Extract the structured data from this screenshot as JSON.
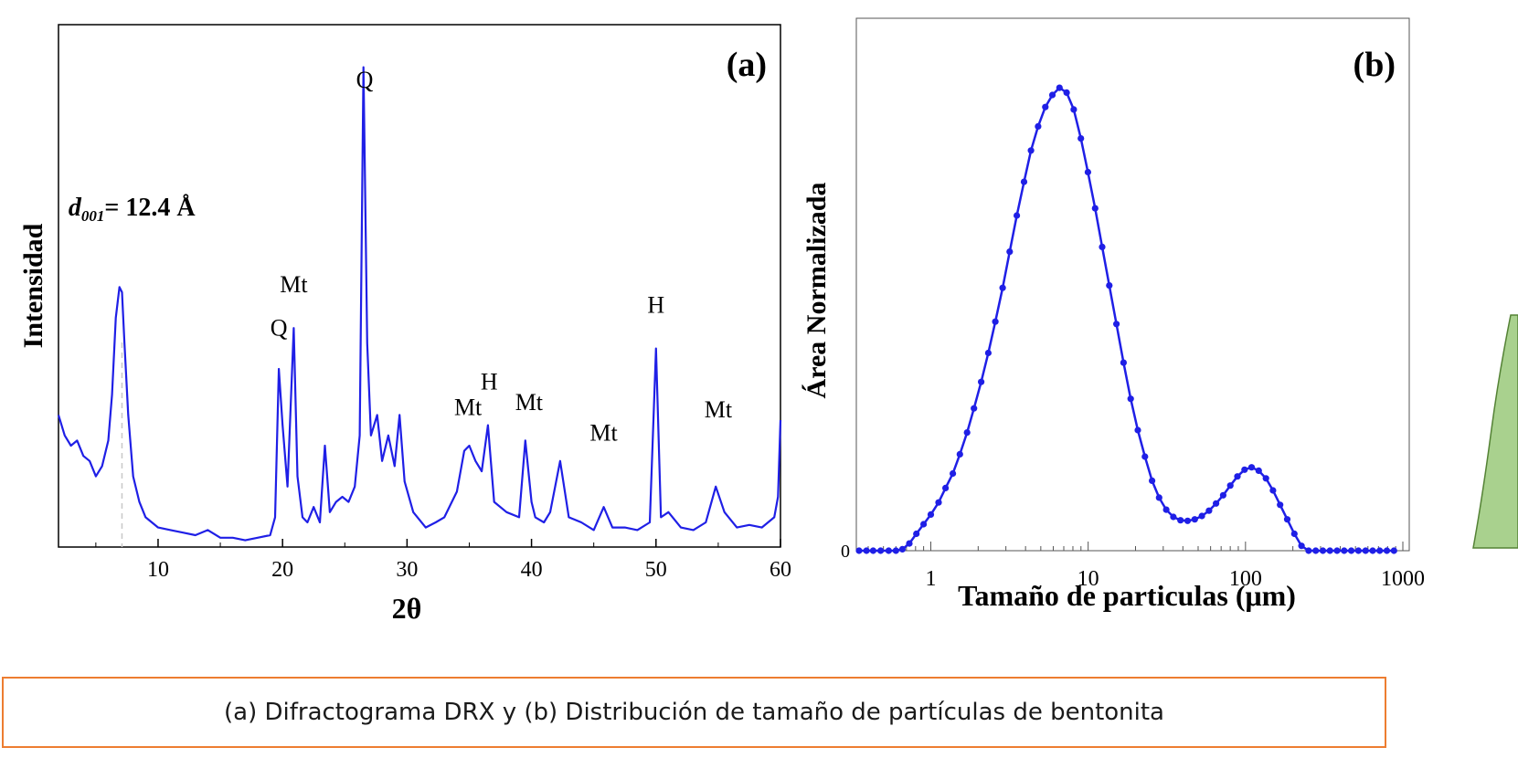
{
  "caption": "(a) Difractograma DRX y (b) Distribución de tamaño de partículas de bentonita",
  "colors": {
    "series": "#1f1fe6",
    "caption_border": "#ed7d31",
    "arrow_fill": "#a9d18e",
    "arrow_stroke": "#548235"
  },
  "chart_data": [
    {
      "type": "line",
      "panel_label": "(a)",
      "xlabel": "2θ",
      "ylabel": "Intensidad",
      "xlim": [
        2,
        60
      ],
      "ylim": [
        0,
        100
      ],
      "xticks": [
        10,
        20,
        30,
        40,
        50,
        60
      ],
      "x_tick_labels": [
        "10",
        "20",
        "30",
        "40",
        "50",
        "60"
      ],
      "y_ticks_shown": false,
      "annotations": [
        {
          "text": "Q",
          "x": 26.6,
          "y": 90
        },
        {
          "text": "Q",
          "x": 19.7,
          "y": 41.5
        },
        {
          "text": "Mt",
          "x": 20.9,
          "y": 50
        },
        {
          "text": "Mt",
          "x": 34.9,
          "y": 26
        },
        {
          "text": "H",
          "x": 36.6,
          "y": 31
        },
        {
          "text": "Mt",
          "x": 39.8,
          "y": 27
        },
        {
          "text": "Mt",
          "x": 45.8,
          "y": 21
        },
        {
          "text": "H",
          "x": 50,
          "y": 46
        },
        {
          "text": "Mt",
          "x": 55,
          "y": 25.5
        }
      ],
      "d_spacing_label": {
        "italic": "d",
        "subscript": "001",
        "rest": "= 12.4 Å",
        "x": 2.8,
        "y": 65
      },
      "guide_line_x": 7.1,
      "series": [
        {
          "name": "",
          "x": [
            2,
            2.5,
            3,
            3.5,
            4,
            4.5,
            5,
            5.5,
            6,
            6.3,
            6.6,
            6.9,
            7.1,
            7.3,
            7.6,
            8,
            8.5,
            9,
            10,
            11,
            12,
            13,
            14,
            15,
            16,
            17,
            18,
            19,
            19.4,
            19.7,
            20,
            20.4,
            20.9,
            21.2,
            21.6,
            22,
            22.5,
            23,
            23.4,
            23.8,
            24.3,
            24.8,
            25.3,
            25.8,
            26.2,
            26.5,
            26.8,
            27.1,
            27.6,
            28,
            28.5,
            29,
            29.4,
            29.8,
            30.5,
            31.5,
            32.3,
            33,
            34,
            34.6,
            35,
            35.5,
            36,
            36.5,
            37,
            38,
            39,
            39.5,
            40,
            40.3,
            41,
            41.5,
            42.3,
            43,
            44,
            45,
            45.8,
            46.5,
            47.5,
            48.5,
            49.5,
            50,
            50.4,
            51,
            52,
            53,
            54,
            54.8,
            55.5,
            56.5,
            57.5,
            58.5,
            59.5,
            59.8,
            60
          ],
          "y": [
            26,
            22,
            20,
            21,
            18,
            17,
            14,
            16,
            21,
            30,
            45,
            51,
            50,
            40,
            26,
            14,
            9,
            6,
            4,
            3.5,
            3,
            2.5,
            3.5,
            2,
            2,
            1.5,
            2,
            2.5,
            6,
            35,
            24,
            12,
            43,
            14,
            6,
            5,
            8,
            5,
            20,
            7,
            9,
            10,
            9,
            12,
            22,
            94,
            40,
            22,
            26,
            17,
            22,
            16,
            26,
            13,
            7,
            4,
            5,
            6,
            11,
            19,
            20,
            17,
            15,
            24,
            9,
            7,
            6,
            21,
            9,
            6,
            5,
            7,
            17,
            6,
            5,
            3.5,
            8,
            4,
            4,
            3.5,
            5,
            39,
            6,
            7,
            4,
            3.5,
            5,
            12,
            7,
            4,
            4.5,
            4,
            6,
            10,
            25
          ]
        }
      ]
    },
    {
      "type": "line",
      "panel_label": "(b)",
      "xlabel": "Tamaño de particulas (μm)",
      "ylabel": "Área Normalizada",
      "x_scale": "log",
      "xlim": [
        0.35,
        1000
      ],
      "ylim": [
        0,
        100
      ],
      "xticks": [
        1,
        10,
        100,
        1000
      ],
      "x_tick_labels": [
        "1",
        "10",
        "100",
        "1000"
      ],
      "y_tick_labels": [
        "0"
      ],
      "markers": true,
      "series": [
        {
          "name": "",
          "x": [
            0.35,
            0.39,
            0.43,
            0.48,
            0.54,
            0.6,
            0.66,
            0.73,
            0.81,
            0.9,
            1.0,
            1.12,
            1.24,
            1.38,
            1.53,
            1.7,
            1.88,
            2.09,
            2.32,
            2.57,
            2.86,
            3.17,
            3.52,
            3.91,
            4.33,
            4.81,
            5.34,
            5.92,
            6.57,
            7.3,
            8.1,
            8.99,
            9.97,
            11.07,
            12.28,
            13.63,
            15.13,
            16.79,
            18.63,
            20.68,
            22.95,
            25.47,
            28.26,
            31.36,
            34.81,
            38.63,
            42.87,
            47.57,
            52.79,
            58.59,
            65.02,
            72.16,
            80.08,
            88.87,
            98.62,
            109.4,
            121.4,
            134.8,
            149.6,
            166.0,
            184.2,
            204.4,
            226.9,
            251.8,
            279.4,
            310.1,
            344.1,
            381.9,
            423.8,
            470.3,
            521.9,
            579.2,
            642.8,
            713.3,
            791.6,
            878.5
          ],
          "y": [
            0,
            0,
            0,
            0,
            0,
            0,
            0.3,
            1.5,
            3.5,
            5.5,
            7.5,
            10,
            13,
            16,
            20,
            24.5,
            29.5,
            35,
            41,
            47.5,
            54.5,
            62,
            69.5,
            76.5,
            83,
            88,
            92,
            94.5,
            96,
            95,
            91.5,
            85.5,
            78.5,
            71,
            63,
            55,
            47,
            39,
            31.5,
            25,
            19.5,
            14.5,
            11,
            8.5,
            7,
            6.3,
            6.2,
            6.5,
            7.2,
            8.3,
            9.8,
            11.5,
            13.5,
            15.4,
            16.8,
            17.3,
            16.6,
            15,
            12.5,
            9.5,
            6.5,
            3.5,
            1,
            0,
            0,
            0,
            0,
            0,
            0,
            0,
            0,
            0,
            0,
            0,
            0,
            0
          ]
        }
      ]
    }
  ]
}
